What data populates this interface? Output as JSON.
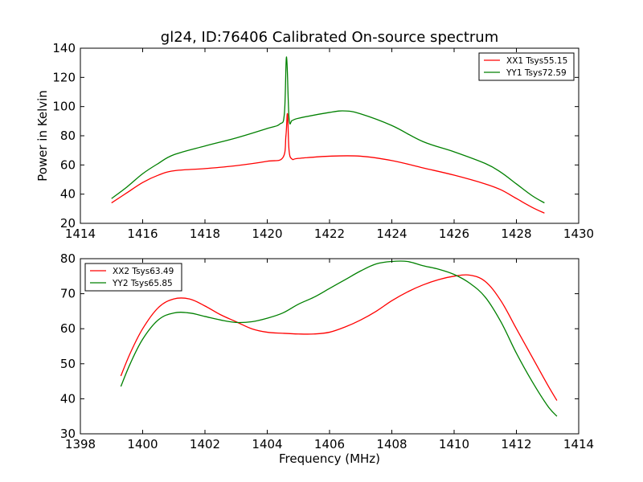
{
  "figure": {
    "title": "gl24, ID:76406 Calibrated On-source spectrum",
    "xlabel": "Frequency (MHz)",
    "top_ylabel": "Power in Kelvin"
  },
  "chart_data": [
    {
      "type": "line",
      "title": "gl24, ID:76406 Calibrated On-source spectrum",
      "xlabel": "",
      "ylabel": "Power in Kelvin",
      "xlim": [
        1414,
        1430
      ],
      "ylim": [
        20,
        140
      ],
      "xticks": [
        1414,
        1416,
        1418,
        1420,
        1422,
        1424,
        1426,
        1428,
        1430
      ],
      "yticks": [
        20,
        40,
        60,
        80,
        100,
        120,
        140
      ],
      "legend_position": "top-right",
      "grid": false,
      "series": [
        {
          "name": "XX1 Tsys55.15",
          "color": "#ff0000",
          "x": [
            1415.0,
            1415.5,
            1416.0,
            1416.5,
            1417.0,
            1418.0,
            1419.0,
            1420.0,
            1420.5,
            1420.6,
            1420.65,
            1420.7,
            1420.8,
            1421.0,
            1422.0,
            1423.0,
            1424.0,
            1425.0,
            1426.0,
            1427.0,
            1427.5,
            1428.0,
            1428.5,
            1428.9
          ],
          "y": [
            34,
            41,
            48,
            53,
            56,
            57.5,
            59.5,
            62.5,
            65,
            80,
            95,
            70,
            64,
            64.5,
            66,
            66,
            63,
            58,
            53,
            47,
            43,
            37,
            31,
            27
          ]
        },
        {
          "name": "YY1 Tsys72.59",
          "color": "#008000",
          "x": [
            1415.0,
            1415.5,
            1416.0,
            1416.5,
            1417.0,
            1418.0,
            1419.0,
            1420.0,
            1420.4,
            1420.55,
            1420.62,
            1420.7,
            1420.8,
            1421.0,
            1422.0,
            1422.5,
            1423.0,
            1424.0,
            1425.0,
            1426.0,
            1427.0,
            1427.5,
            1428.0,
            1428.5,
            1428.9
          ],
          "y": [
            37,
            45,
            54,
            61,
            67,
            73,
            78.5,
            85,
            88,
            95,
            134,
            92,
            90.5,
            92,
            96,
            97,
            95,
            87,
            76,
            69,
            61,
            55,
            47,
            39,
            34
          ]
        }
      ]
    },
    {
      "type": "line",
      "title": "",
      "xlabel": "Frequency (MHz)",
      "ylabel": "",
      "xlim": [
        1398,
        1414
      ],
      "ylim": [
        30,
        80
      ],
      "xticks": [
        1398,
        1400,
        1402,
        1404,
        1406,
        1408,
        1410,
        1412,
        1414
      ],
      "yticks": [
        30,
        40,
        50,
        60,
        70,
        80
      ],
      "legend_position": "top-left",
      "grid": false,
      "series": [
        {
          "name": "XX2 Tsys63.49",
          "color": "#ff0000",
          "x": [
            1399.3,
            1399.6,
            1400.0,
            1400.5,
            1401.0,
            1401.5,
            1402.0,
            1402.5,
            1403.0,
            1403.5,
            1404.0,
            1404.5,
            1405.0,
            1405.5,
            1406.0,
            1406.5,
            1407.0,
            1407.5,
            1408.0,
            1408.5,
            1409.0,
            1409.5,
            1410.0,
            1410.5,
            1411.0,
            1411.5,
            1412.0,
            1412.5,
            1413.0,
            1413.3
          ],
          "y": [
            46.5,
            53,
            60,
            66,
            68.5,
            68.5,
            66.5,
            64,
            62,
            60,
            59,
            58.7,
            58.5,
            58.5,
            59,
            60.5,
            62.5,
            65,
            68,
            70.5,
            72.5,
            74,
            75,
            75.3,
            73.5,
            68,
            60,
            52,
            44,
            39.5
          ]
        },
        {
          "name": "YY2 Tsys65.85",
          "color": "#008000",
          "x": [
            1399.3,
            1399.6,
            1400.0,
            1400.5,
            1401.0,
            1401.5,
            1402.0,
            1402.5,
            1403.0,
            1403.5,
            1404.0,
            1404.5,
            1405.0,
            1405.5,
            1406.0,
            1406.5,
            1407.0,
            1407.5,
            1408.0,
            1408.5,
            1409.0,
            1409.5,
            1410.0,
            1410.5,
            1411.0,
            1411.5,
            1412.0,
            1412.5,
            1413.0,
            1413.3
          ],
          "y": [
            43.5,
            50,
            57,
            62.5,
            64.5,
            64.5,
            63.5,
            62.5,
            61.8,
            62,
            63,
            64.5,
            67,
            69,
            71.5,
            74,
            76.5,
            78.5,
            79.2,
            79.2,
            78,
            77,
            75.5,
            73,
            69,
            62,
            53,
            45,
            38,
            35
          ]
        }
      ]
    }
  ]
}
